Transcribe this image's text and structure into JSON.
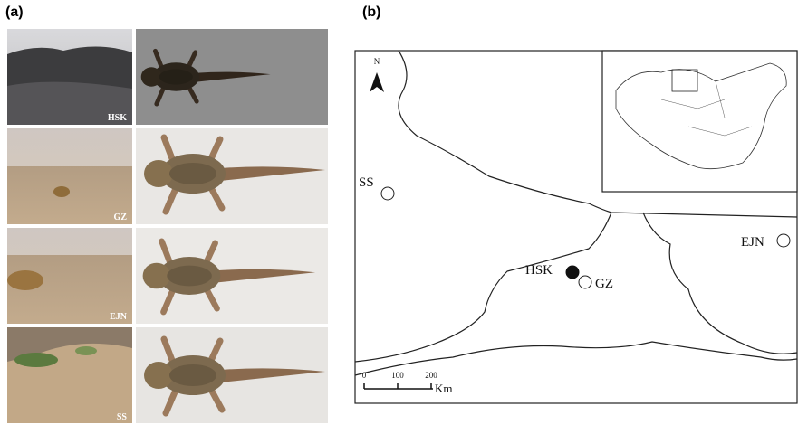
{
  "panel_a": {
    "label": "(a)",
    "sites": [
      "HSK",
      "GZ",
      "EJN",
      "SS"
    ]
  },
  "panel_b": {
    "label": "(b)",
    "north": "N",
    "sites": [
      "SS",
      "HSK",
      "GZ",
      "EJN"
    ],
    "scale": {
      "ticks": [
        0,
        100,
        200
      ],
      "unit": "Km"
    }
  }
}
